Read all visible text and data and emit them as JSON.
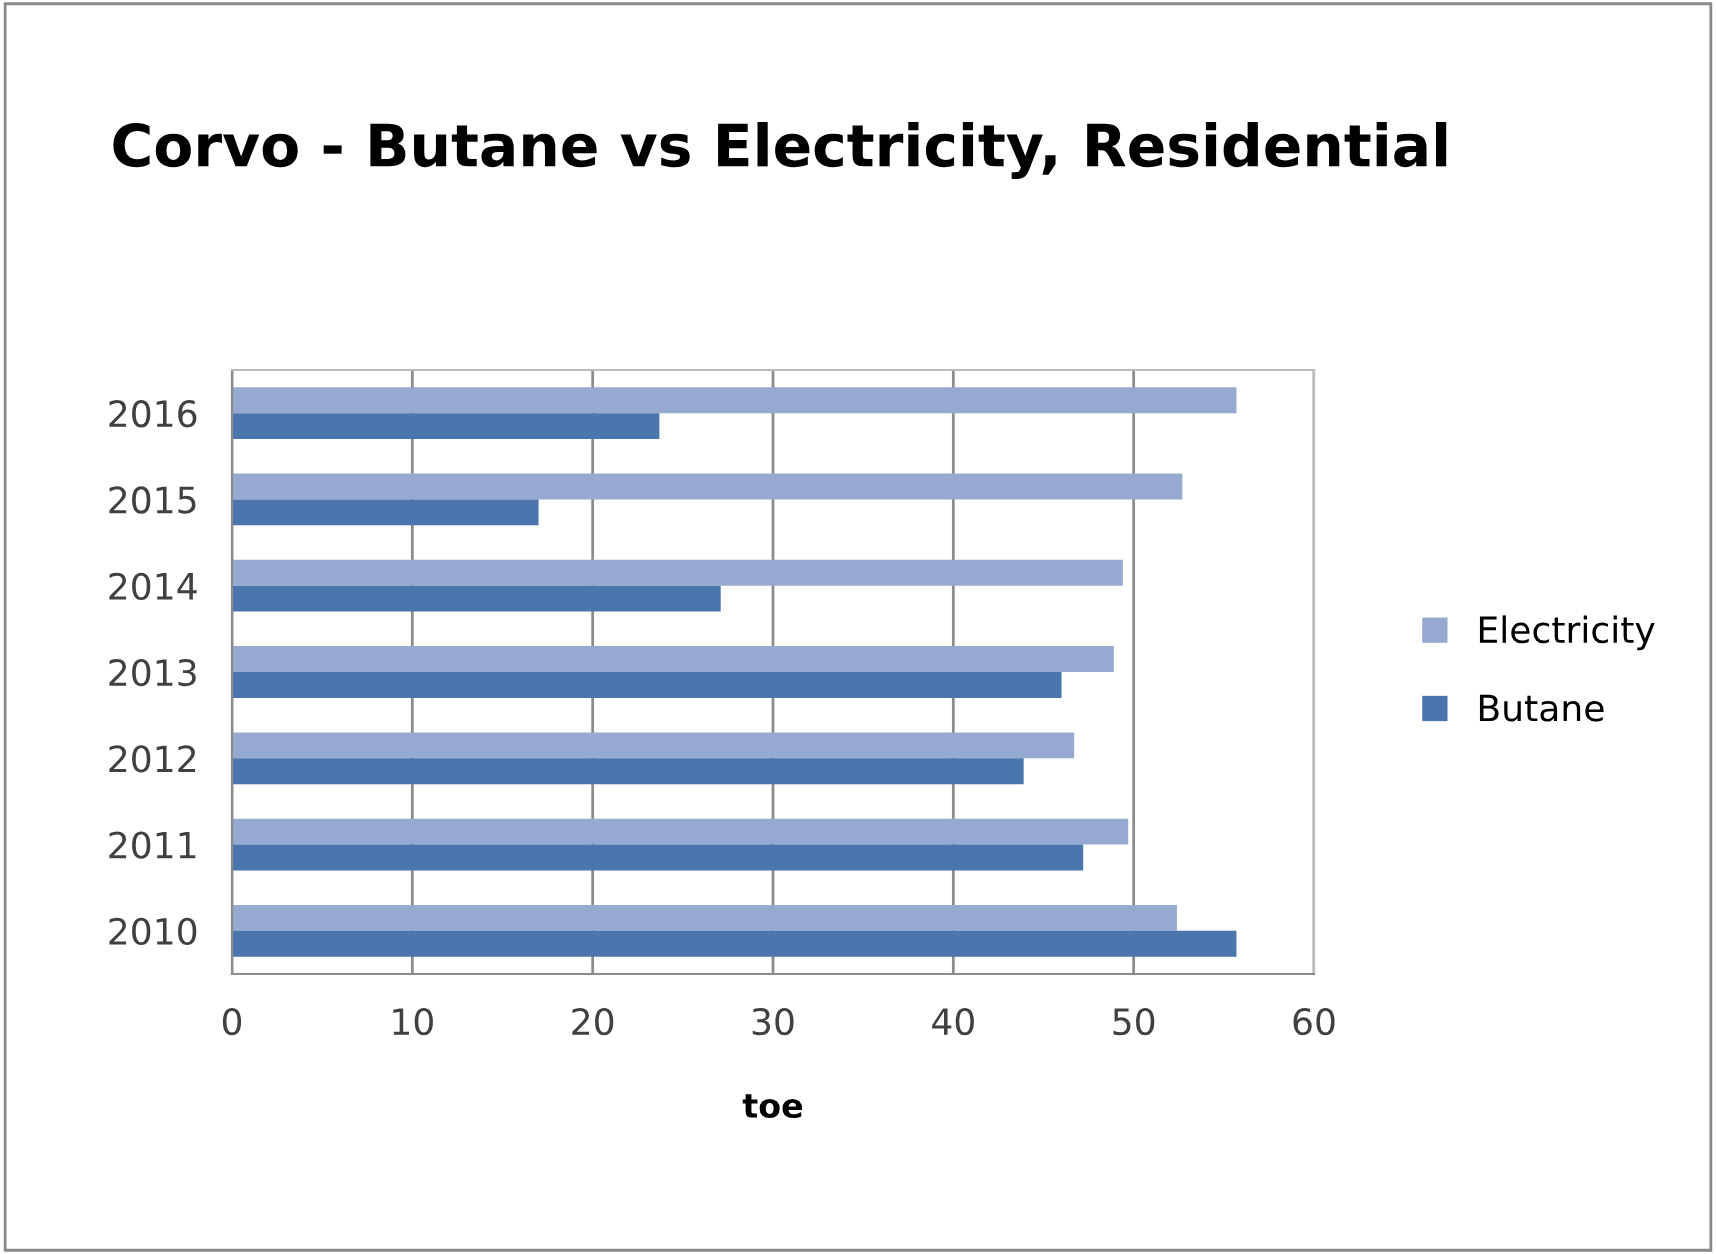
{
  "chart_data": {
    "type": "bar",
    "orientation": "horizontal",
    "title": "Corvo - Butane vs Electricity, Residential",
    "xlabel": "toe",
    "categories": [
      "2016",
      "2015",
      "2014",
      "2013",
      "2012",
      "2011",
      "2010"
    ],
    "series": [
      {
        "name": "Electricity",
        "color": "#95a9d1",
        "values": [
          55.7,
          52.7,
          49.4,
          48.9,
          46.7,
          49.7,
          52.4
        ]
      },
      {
        "name": "Butane",
        "color": "#4a75ad",
        "values": [
          23.7,
          17.0,
          27.1,
          46.0,
          43.9,
          47.2,
          55.7
        ]
      }
    ],
    "xlim": [
      0,
      60
    ],
    "xticks": [
      0,
      10,
      20,
      30,
      40,
      50,
      60
    ],
    "grid": "x",
    "legend": "right"
  }
}
